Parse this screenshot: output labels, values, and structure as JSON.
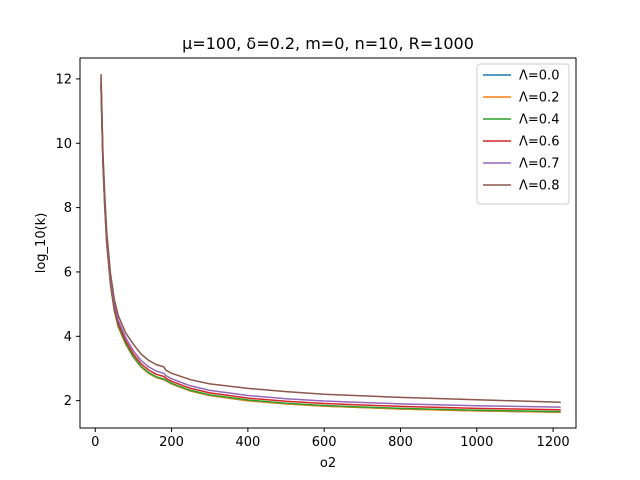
{
  "chart_data": {
    "type": "line",
    "title": "μ=100, δ=0.2, m=0, n=10, R=1000",
    "xlabel": "o2",
    "ylabel": "log_10(k)",
    "xlim": [
      -40,
      1260
    ],
    "ylim": [
      1.15,
      12.65
    ],
    "xticks": [
      0,
      200,
      400,
      600,
      800,
      1000,
      1200
    ],
    "xtick_labels": [
      "0",
      "200",
      "400",
      "600",
      "800",
      "1000",
      "1200"
    ],
    "yticks": [
      2,
      4,
      6,
      8,
      10,
      12
    ],
    "ytick_labels": [
      "2",
      "4",
      "6",
      "8",
      "10",
      "12"
    ],
    "grid": false,
    "legend_position": "top-right",
    "x": [
      15,
      20,
      25,
      30,
      40,
      50,
      60,
      80,
      100,
      120,
      140,
      160,
      180,
      185,
      200,
      250,
      300,
      400,
      500,
      600,
      800,
      1000,
      1220
    ],
    "series": [
      {
        "name": "Λ=0.0",
        "color": "#1f77b4",
        "values": [
          11.8,
          9.4,
          8.0,
          6.9,
          5.6,
          4.8,
          4.3,
          3.75,
          3.35,
          3.05,
          2.85,
          2.72,
          2.65,
          2.62,
          2.52,
          2.3,
          2.16,
          2.0,
          1.9,
          1.83,
          1.74,
          1.68,
          1.64
        ]
      },
      {
        "name": "Λ=0.2",
        "color": "#ff7f0e",
        "values": [
          11.8,
          9.4,
          8.0,
          6.9,
          5.6,
          4.8,
          4.3,
          3.75,
          3.35,
          3.05,
          2.85,
          2.72,
          2.65,
          2.62,
          2.52,
          2.3,
          2.16,
          2.0,
          1.9,
          1.83,
          1.74,
          1.68,
          1.64
        ]
      },
      {
        "name": "Λ=0.4",
        "color": "#2ca02c",
        "values": [
          11.82,
          9.42,
          8.02,
          6.92,
          5.62,
          4.82,
          4.32,
          3.77,
          3.37,
          3.07,
          2.87,
          2.74,
          2.67,
          2.64,
          2.54,
          2.32,
          2.18,
          2.02,
          1.92,
          1.85,
          1.76,
          1.7,
          1.66
        ]
      },
      {
        "name": "Λ=0.6",
        "color": "#d62728",
        "values": [
          11.9,
          9.5,
          8.1,
          7.0,
          5.7,
          4.9,
          4.4,
          3.85,
          3.45,
          3.15,
          2.95,
          2.82,
          2.75,
          2.7,
          2.6,
          2.38,
          2.24,
          2.08,
          1.98,
          1.91,
          1.82,
          1.76,
          1.72
        ]
      },
      {
        "name": "Λ=0.7",
        "color": "#9467bd",
        "values": [
          12.05,
          9.6,
          8.2,
          7.1,
          5.8,
          5.0,
          4.5,
          3.95,
          3.55,
          3.25,
          3.05,
          2.92,
          2.85,
          2.78,
          2.68,
          2.46,
          2.32,
          2.16,
          2.06,
          1.99,
          1.9,
          1.84,
          1.8
        ]
      },
      {
        "name": "Λ=0.8",
        "color": "#8c564b",
        "values": [
          12.15,
          9.75,
          8.35,
          7.25,
          5.95,
          5.15,
          4.65,
          4.1,
          3.75,
          3.45,
          3.25,
          3.12,
          3.05,
          2.95,
          2.85,
          2.65,
          2.52,
          2.38,
          2.28,
          2.2,
          2.1,
          2.03,
          1.95
        ]
      }
    ]
  }
}
